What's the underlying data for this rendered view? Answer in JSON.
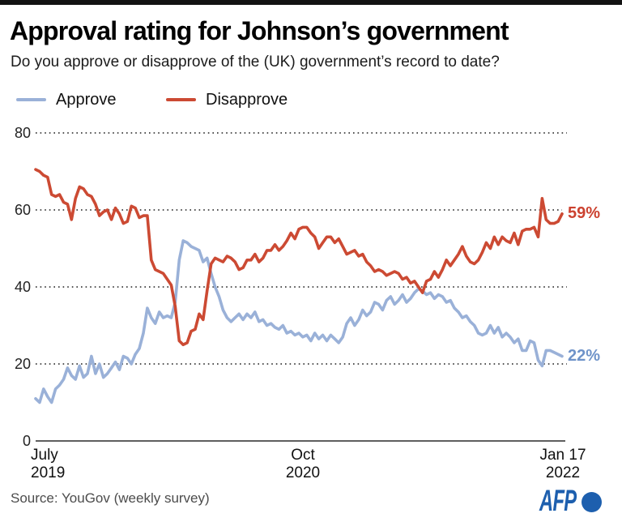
{
  "header": {
    "title": "Approval rating for Johnson’s government",
    "subtitle": "Do you approve or disapprove of the (UK) government’s record to date?"
  },
  "chart_data": {
    "type": "line",
    "title": "Approval rating for Johnson’s government",
    "xlabel": "",
    "ylabel": "",
    "ylim": [
      0,
      80
    ],
    "grid": "horizontal dotted lines at 20, 40, 60, 80",
    "grid_values": [
      80,
      60,
      40,
      20
    ],
    "y_tick_values": [
      80,
      60,
      40,
      20,
      0
    ],
    "y_tick_labels": [
      "80",
      "60",
      "40",
      "20",
      "0"
    ],
    "x_ticks": [
      {
        "line1": "July",
        "line2": "2019",
        "position_frac": 0.0
      },
      {
        "line1": "Oct",
        "line2": "2020",
        "position_frac": 0.51
      },
      {
        "line1": "Jan 17",
        "line2": "2022",
        "position_frac": 1.0
      }
    ],
    "x_unit": "weekly survey points, July 2019 to Jan 17 2022",
    "legend_position": "top-left above plot",
    "series": [
      {
        "name": "Approve",
        "color": "#9ab1d8",
        "end_label": "22%",
        "end_label_color": "#6f93c9",
        "values": [
          11,
          10,
          13.5,
          11.5,
          10,
          13.5,
          14.5,
          16,
          19,
          17,
          16,
          19.5,
          16.5,
          17.5,
          22,
          17.5,
          20,
          16.5,
          17.5,
          19,
          20.5,
          18.5,
          22,
          21.5,
          20,
          22.5,
          24,
          28,
          34.5,
          32,
          30.5,
          33.5,
          32,
          32.5,
          32,
          36,
          47,
          52,
          51.5,
          50.5,
          50,
          49.5,
          46.5,
          47.5,
          43.5,
          40,
          37.5,
          34,
          32,
          31,
          32,
          33,
          31.5,
          33,
          32,
          33.5,
          31,
          31.5,
          30,
          30.5,
          29.5,
          29,
          30,
          28,
          28.5,
          27.5,
          28,
          27,
          27.5,
          26,
          28,
          26.5,
          27.5,
          26,
          27.5,
          26.5,
          25.5,
          27,
          30.5,
          32,
          30,
          31.5,
          34,
          32.5,
          33.5,
          36,
          35.5,
          34,
          36.5,
          37.5,
          35.5,
          36.5,
          38,
          36,
          37,
          38.5,
          39.5,
          39,
          38,
          38.5,
          37,
          38,
          37.5,
          36,
          36.5,
          34.5,
          33.5,
          32,
          32.5,
          31,
          30,
          28,
          27.5,
          28,
          30,
          28,
          29.5,
          27,
          28,
          27,
          25.5,
          26.5,
          23.5,
          23.5,
          26,
          25.5,
          21,
          19.5,
          23.5,
          23.5,
          23,
          22.5,
          22
        ]
      },
      {
        "name": "Disapprove",
        "color": "#cc4a33",
        "end_label": "59%",
        "end_label_color": "#cc4230",
        "values": [
          70.5,
          70,
          69,
          68.5,
          64,
          63.5,
          64,
          62,
          61.5,
          57.5,
          63,
          66,
          65.5,
          64,
          63.5,
          61.5,
          58.5,
          59.5,
          60,
          57.5,
          60.5,
          59,
          56.5,
          57,
          61,
          60.5,
          58,
          58.5,
          58.5,
          47,
          44.5,
          44,
          43.5,
          42,
          40.5,
          35,
          26,
          25,
          25.5,
          28.5,
          29,
          33,
          31.5,
          39,
          46,
          47.5,
          47,
          46.5,
          48,
          47.5,
          46.5,
          44.5,
          45,
          47,
          47,
          48.5,
          46.5,
          47.5,
          49.5,
          49.5,
          51,
          49.5,
          50.5,
          52,
          54,
          52.5,
          55,
          55.5,
          55.5,
          54,
          53,
          50,
          51.5,
          53,
          53,
          51.5,
          52.5,
          50.5,
          48.5,
          49,
          49.5,
          48,
          48.5,
          46.5,
          45.5,
          44,
          44.5,
          44,
          43,
          43.5,
          44,
          43.5,
          42,
          42.5,
          41,
          41.5,
          40,
          38.5,
          41.5,
          42,
          44,
          42.5,
          44.5,
          47,
          45.5,
          47,
          48.5,
          50.5,
          48,
          46.5,
          46,
          47,
          49,
          51.5,
          50,
          53,
          51,
          53,
          52,
          51.5,
          54,
          51,
          54.5,
          55,
          55,
          55.5,
          53,
          63,
          57.5,
          56.5,
          56.5,
          57,
          59
        ]
      }
    ]
  },
  "footer": {
    "source": "Source: YouGov (weekly survey)",
    "logo_text": "AFP"
  },
  "colors": {
    "approve_line": "#9ab1d8",
    "disapprove_line": "#cc4a33",
    "afp_blue": "#1d5fae",
    "top_bar": "#121212"
  }
}
